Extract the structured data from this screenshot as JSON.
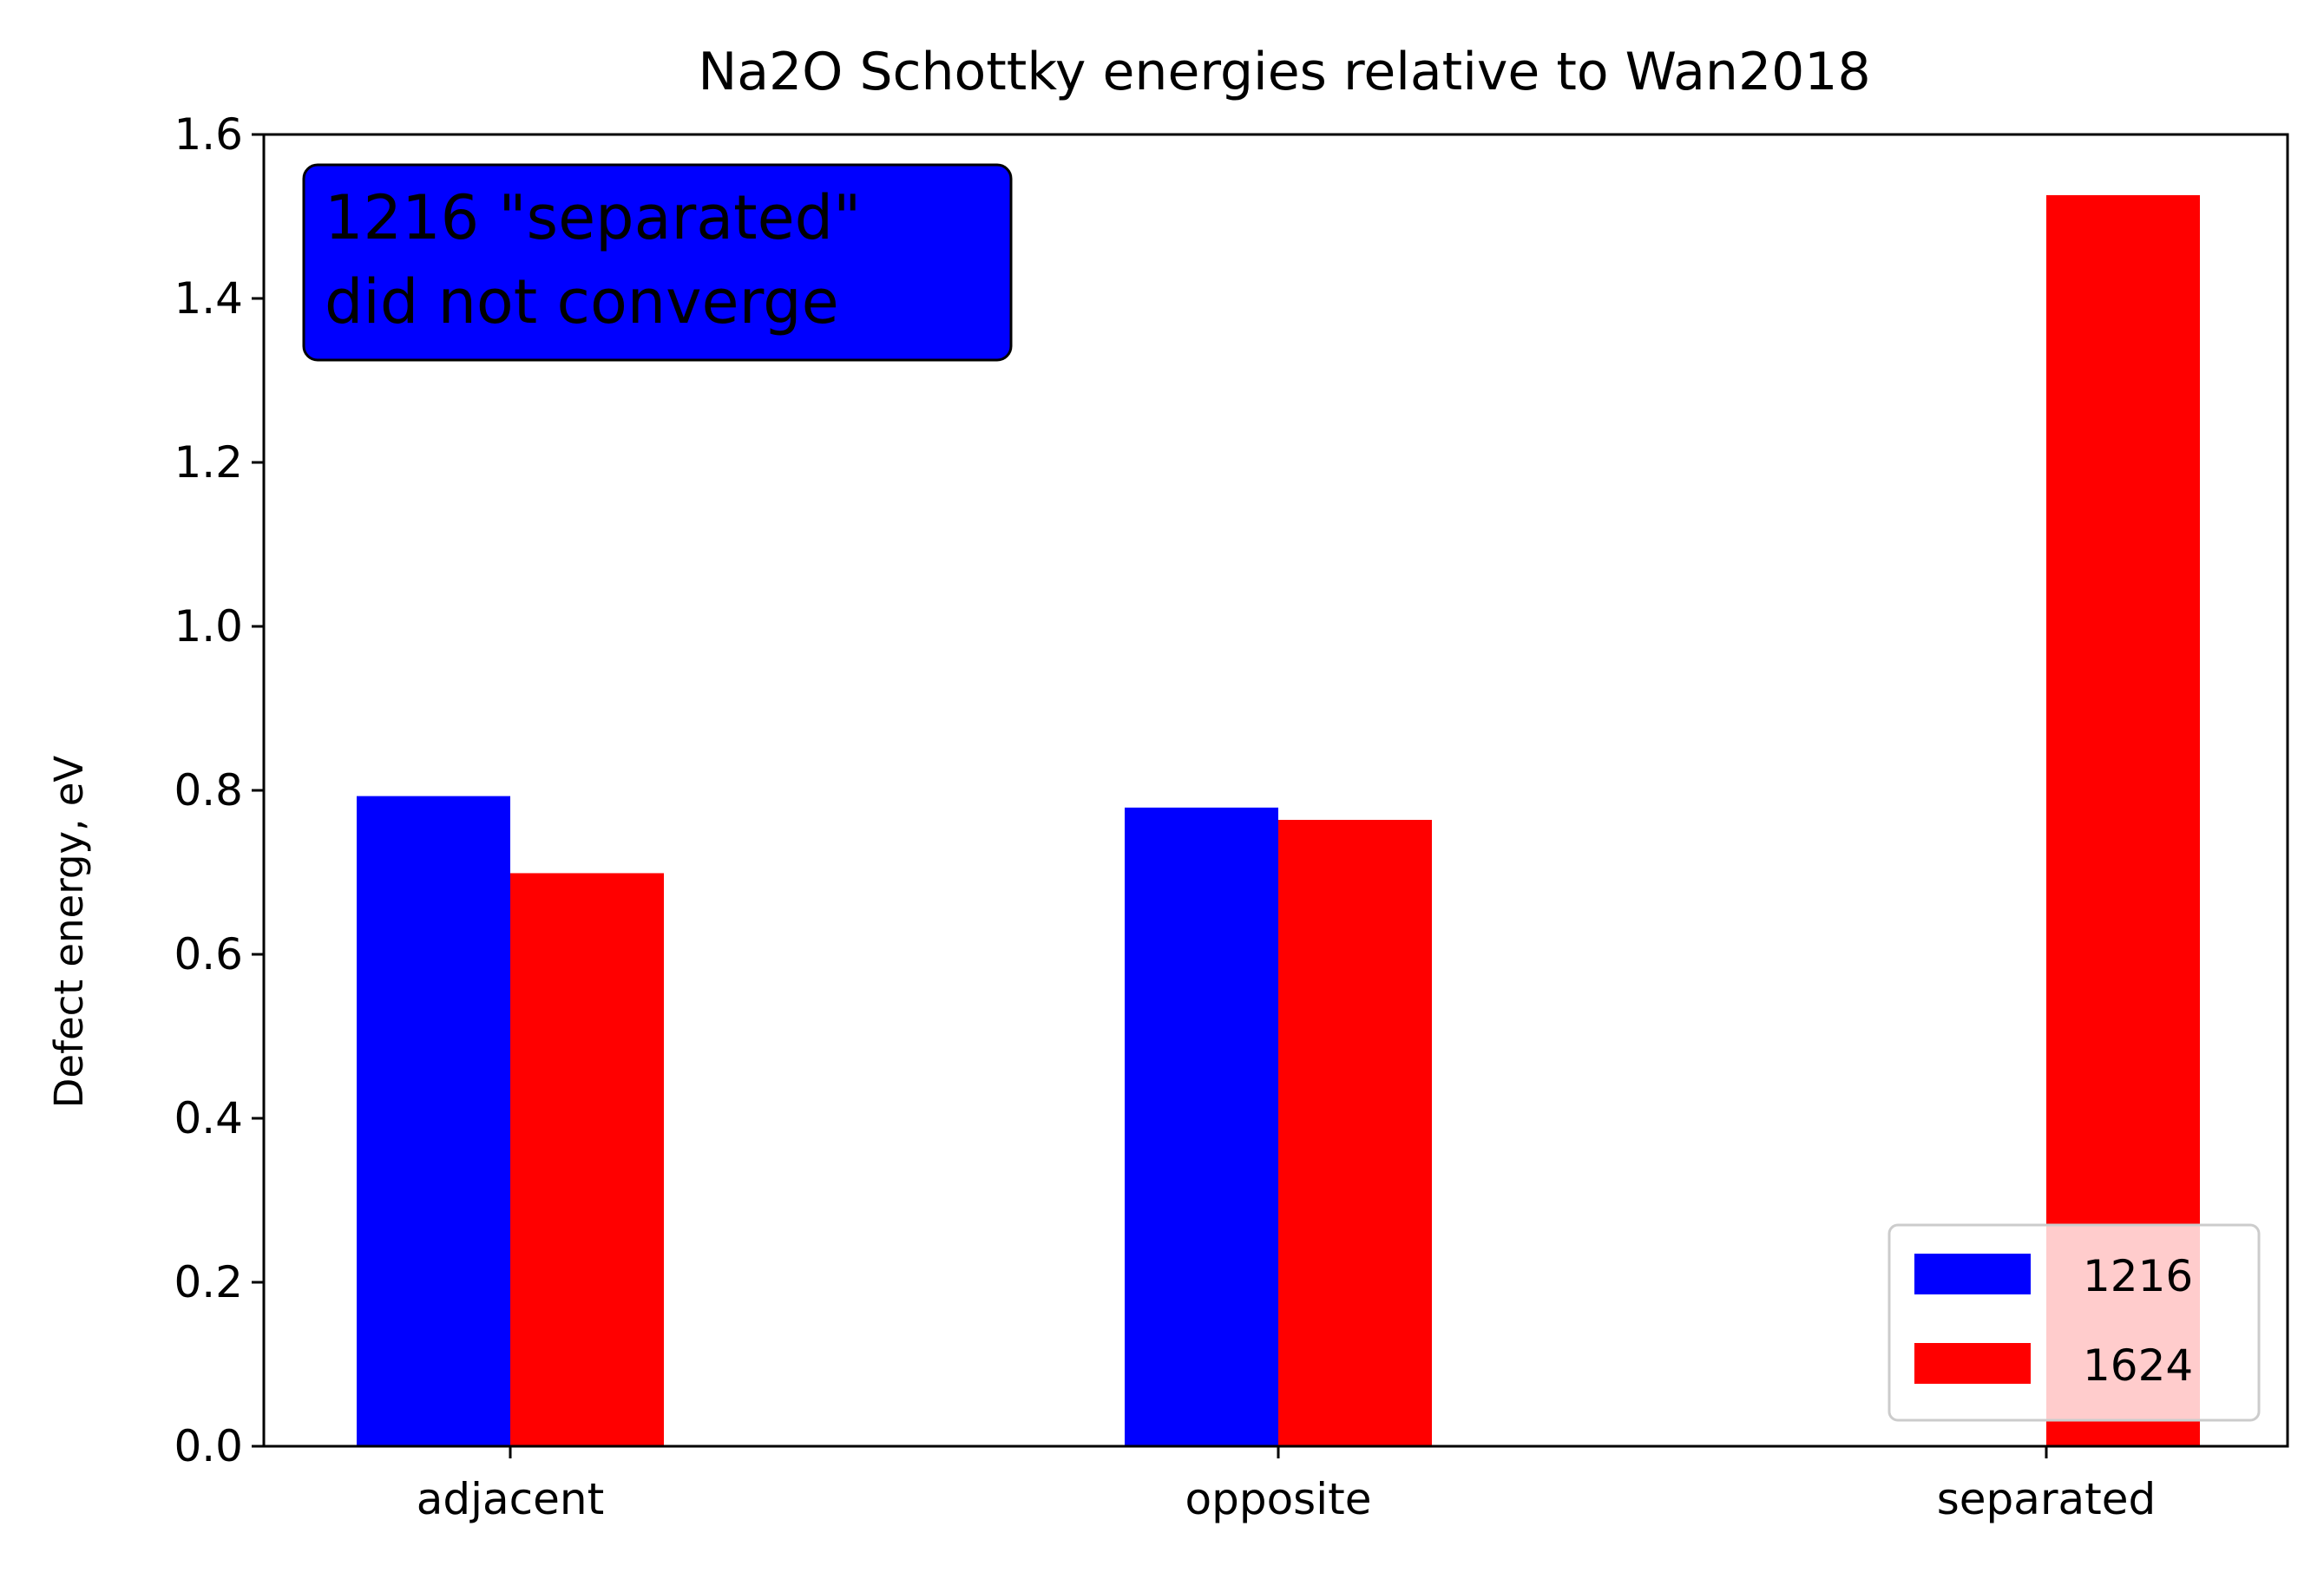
{
  "chart_data": {
    "type": "bar",
    "title": "Na2O Schottky energies relative to Wan2018",
    "xlabel": "",
    "ylabel": "Defect energy, eV",
    "categories": [
      "adjacent",
      "opposite",
      "separated"
    ],
    "series": [
      {
        "name": "1216",
        "values": [
          0.793,
          0.779,
          null
        ],
        "color": "#0000ff"
      },
      {
        "name": "1624",
        "values": [
          0.699,
          0.764,
          1.526
        ],
        "color": "#ff0000"
      }
    ],
    "ylim": [
      0,
      1.6
    ],
    "yticks": [
      0.0,
      0.2,
      0.4,
      0.6,
      0.8,
      1.0,
      1.2,
      1.4,
      1.6
    ],
    "ytick_labels": [
      "0.0",
      "0.2",
      "0.4",
      "0.6",
      "0.8",
      "1.0",
      "1.2",
      "1.4",
      "1.6"
    ],
    "grid": false,
    "legend": {
      "placement": "lower-right",
      "entries": [
        "1216",
        "1624"
      ]
    },
    "annotation": {
      "lines": [
        "1216 \"separated\"",
        "did not converge"
      ],
      "background": "#0000ff",
      "placement": "top-left"
    }
  }
}
